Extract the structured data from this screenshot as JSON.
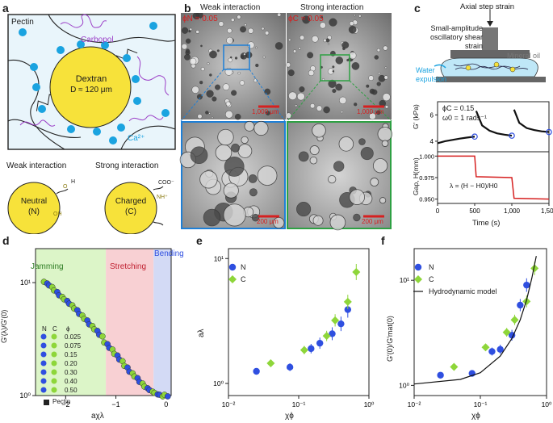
{
  "panel_labels": {
    "a": "a",
    "b": "b",
    "c": "c",
    "d": "d",
    "e": "e",
    "f": "f"
  },
  "panel_a": {
    "pectin": "Pectin",
    "carbopol": "Carbopol",
    "dextran": "Dextran",
    "dextran_size": "D ≈ 120 μm",
    "calcium": "Ca²⁺",
    "weak_title": "Weak interaction",
    "strong_title": "Strong interaction",
    "neutral": "Neutral",
    "neutral_code": "(N)",
    "charged": "Charged",
    "charged_code": "(C)",
    "chem_oh": "OH",
    "chem_o": "O",
    "chem_h": "H",
    "chem_nh": "NH⁺",
    "chem_coo": "COO⁻"
  },
  "panel_b": {
    "weak_title": "Weak interaction",
    "strong_title": "Strong interaction",
    "phi_weak": "ϕN = 0.05",
    "phi_strong": "ϕC = 0.05",
    "scale_top": "1,000 μm",
    "scale_bottom": "200 μm"
  },
  "panel_c": {
    "axial": "Axial step strain",
    "saos_1": "Small-amplitude",
    "saos_2": "oscillatory shear",
    "saos_3": "strain",
    "mineral_oil": "Mineral oil",
    "water_1": "Water",
    "water_2": "expulsion",
    "phi_c": "ϕC = 0.15",
    "omega": "ω0 = 1 rads⁻¹",
    "ylabel_top": "G′ (kPa)",
    "ylabel_bottom": "Gap, H(mm)",
    "lambda_eq": "λ = (H − H0)/H0",
    "xlabel": "Time (s)",
    "top_yticks": [
      "4",
      "6"
    ],
    "bottom_yticks": [
      "0.950",
      "0.975",
      "1.000"
    ],
    "xticks": [
      "0",
      "500",
      "1,000",
      "1,500"
    ]
  },
  "panel_d": {
    "regions": [
      "Jamming",
      "Stretching",
      "Bending"
    ],
    "legend_head": [
      "N",
      "C",
      "ϕ"
    ],
    "legend_phi": [
      "0.025",
      "0.075",
      "0.15",
      "0.20",
      "0.30",
      "0.40",
      "0.50"
    ],
    "legend_pectin": "Pectin",
    "xlabel": "aχλ",
    "ylabel": "G′(λ)/G′(0)"
  },
  "panel_e": {
    "legend": [
      "N",
      "C"
    ],
    "xlabel": "χϕ",
    "ylabel": "aλ"
  },
  "panel_f": {
    "legend": [
      "N",
      "C",
      "Hydrodynamic model"
    ],
    "xlabel": "χϕ",
    "ylabel": "G′(0)/G′mat(0)"
  },
  "colors": {
    "N": "#2f4fe0",
    "C": "#8ed63a",
    "jamming": "#dcf5c8",
    "stretching": "#f8d0d3",
    "bending": "#d3daf5",
    "red": "#d62020",
    "purple": "#9b3ec7",
    "ca": "#1aa3e0",
    "dextran": "#f7e23a"
  },
  "chart_data": [
    {
      "type": "scatter",
      "panel": "c-top",
      "xlabel": "Time (s)",
      "ylabel": "G′ (kPa)",
      "xlim": [
        0,
        1500
      ],
      "ylim": [
        3.2,
        7
      ],
      "series": [
        {
          "name": "G′",
          "points": [
            [
              0,
              3.85
            ],
            [
              100,
              4.0
            ],
            [
              200,
              4.1
            ],
            [
              300,
              4.2
            ],
            [
              400,
              4.28
            ],
            [
              500,
              4.35
            ],
            [
              520,
              6.3
            ],
            [
              600,
              5.2
            ],
            [
              700,
              4.8
            ],
            [
              800,
              4.6
            ],
            [
              900,
              4.5
            ],
            [
              1000,
              4.42
            ],
            [
              1030,
              6.4
            ],
            [
              1100,
              5.4
            ],
            [
              1200,
              5.0
            ],
            [
              1300,
              4.85
            ],
            [
              1400,
              4.75
            ],
            [
              1500,
              4.7
            ]
          ]
        }
      ]
    },
    {
      "type": "line",
      "panel": "c-bottom",
      "xlabel": "Time (s)",
      "ylabel": "Gap, H(mm)",
      "xlim": [
        0,
        1500
      ],
      "ylim": [
        0.945,
        1.005
      ],
      "series": [
        {
          "name": "Gap",
          "points": [
            [
              0,
              1.0
            ],
            [
              500,
              1.0
            ],
            [
              520,
              0.976
            ],
            [
              1000,
              0.975
            ],
            [
              1030,
              0.951
            ],
            [
              1500,
              0.95
            ]
          ]
        }
      ]
    },
    {
      "type": "scatter",
      "panel": "d",
      "xlabel": "aχλ",
      "ylabel": "G′(λ)/G′(0)",
      "xlim": [
        -2.6,
        0.1
      ],
      "ylim": [
        1,
        20
      ],
      "yscale": "log",
      "x": [
        -2.4,
        -2.3,
        -2.2,
        -2.1,
        -2.0,
        -1.9,
        -1.8,
        -1.7,
        -1.6,
        -1.5,
        -1.4,
        -1.3,
        -1.2,
        -1.1,
        -1.0,
        -0.9,
        -0.8,
        -0.7,
        -0.6,
        -0.5,
        -0.4,
        -0.3,
        -0.2,
        -0.1,
        0.0
      ],
      "y": [
        10,
        9.3,
        8.4,
        7.6,
        7.0,
        6.4,
        5.8,
        5.2,
        4.7,
        4.2,
        3.8,
        3.4,
        2.9,
        2.6,
        2.3,
        2.05,
        1.8,
        1.6,
        1.45,
        1.3,
        1.18,
        1.1,
        1.04,
        1.0,
        1.0
      ]
    },
    {
      "type": "scatter",
      "panel": "e",
      "xlabel": "χϕ",
      "ylabel": "aλ",
      "xlim": [
        0.01,
        1
      ],
      "ylim": [
        0.8,
        12
      ],
      "xscale": "log",
      "yscale": "log",
      "series": [
        {
          "name": "N",
          "x": [
            0.025,
            0.075,
            0.15,
            0.2,
            0.3,
            0.4,
            0.5
          ],
          "y": [
            1.25,
            1.35,
            1.9,
            2.1,
            2.5,
            3.0,
            3.9
          ]
        },
        {
          "name": "C",
          "x": [
            0.04,
            0.12,
            0.25,
            0.33,
            0.5,
            0.66
          ],
          "y": [
            1.45,
            1.85,
            2.4,
            3.2,
            4.5,
            7.8
          ]
        }
      ]
    },
    {
      "type": "scatter",
      "panel": "f",
      "xlabel": "χϕ",
      "ylabel": "G′(0)/G′mat(0)",
      "xlim": [
        0.01,
        1
      ],
      "ylim": [
        0.8,
        20
      ],
      "xscale": "log",
      "yscale": "log",
      "series": [
        {
          "name": "N",
          "x": [
            0.025,
            0.075,
            0.15,
            0.2,
            0.3,
            0.4,
            0.5
          ],
          "y": [
            1.25,
            1.3,
            2.1,
            2.2,
            3.0,
            5.8,
            9.0
          ]
        },
        {
          "name": "C",
          "x": [
            0.04,
            0.12,
            0.25,
            0.33,
            0.5,
            0.66
          ],
          "y": [
            1.5,
            2.3,
            3.2,
            4.2,
            6.3,
            13.0
          ]
        },
        {
          "name": "Hydrodynamic model",
          "x": [
            0.01,
            0.05,
            0.1,
            0.2,
            0.3,
            0.4,
            0.5,
            0.6,
            0.7
          ],
          "y": [
            1.03,
            1.14,
            1.32,
            1.9,
            2.8,
            4.2,
            6.5,
            10.5,
            17.0
          ]
        }
      ]
    }
  ]
}
